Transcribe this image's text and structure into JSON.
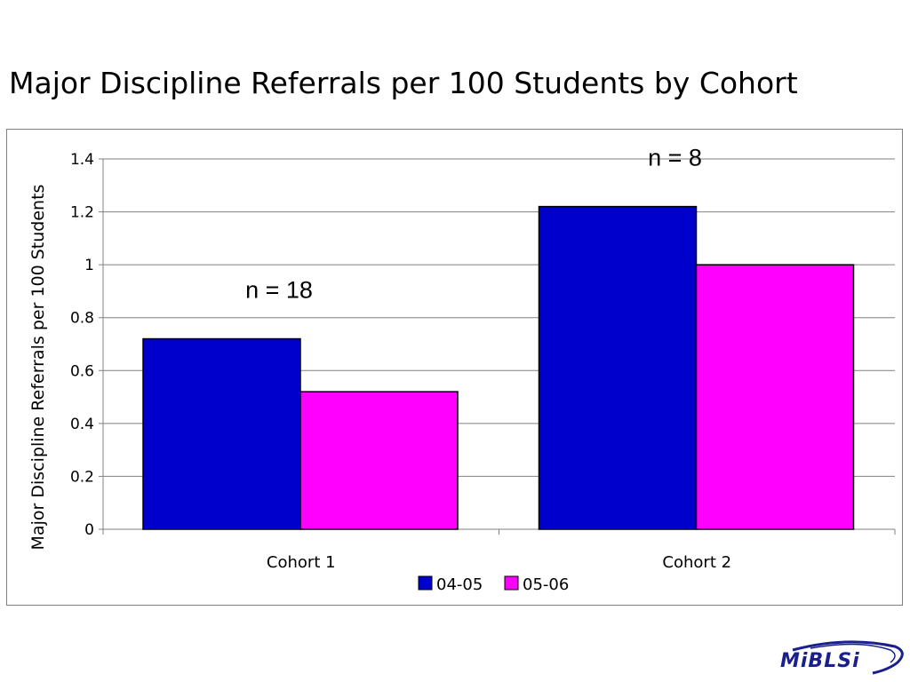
{
  "slide": {
    "title": "Major Discipline Referrals per 100 Students by Cohort"
  },
  "logo": {
    "text": "MiBLSi"
  },
  "chart_data": {
    "type": "bar",
    "title": "",
    "xlabel": "",
    "ylabel": "Major Discipline Referrals per 100 Students",
    "ylim": [
      0,
      1.4
    ],
    "yticks": [
      0,
      0.2,
      0.4,
      0.6,
      0.8,
      1,
      1.2,
      1.4
    ],
    "ytick_labels": [
      "0",
      "0.2",
      "0.4",
      "0.6",
      "0.8",
      "1",
      "1.2",
      "1.4"
    ],
    "grid": true,
    "legend_position": "bottom",
    "categories": [
      "Cohort 1",
      "Cohort 2"
    ],
    "series": [
      {
        "name": "04-05",
        "color": "#0000CC",
        "values": [
          0.72,
          1.22
        ]
      },
      {
        "name": "05-06",
        "color": "#FF00FF",
        "values": [
          0.52,
          1.0
        ]
      }
    ],
    "annotations": [
      {
        "text": "n = 18",
        "category": "Cohort 1"
      },
      {
        "text": "n = 8",
        "category": "Cohort 2"
      }
    ]
  }
}
